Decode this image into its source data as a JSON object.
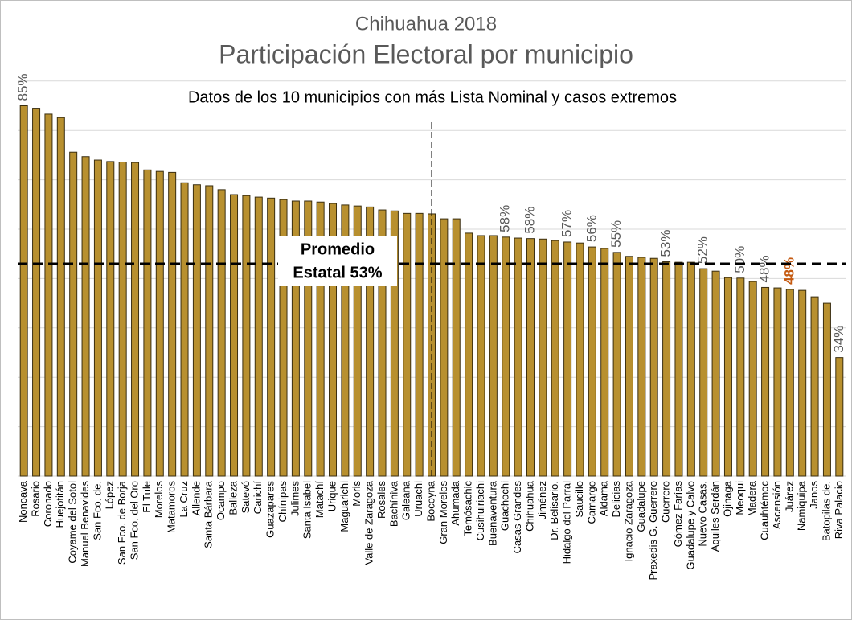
{
  "chart_data": {
    "type": "bar",
    "title": "Chihuahua 2018",
    "subtitle": "Participación Electoral por municipio",
    "note": "Datos de los 10 municipios con más Lista Nominal y casos extremos",
    "categories": [
      "Nonoava",
      "Rosario",
      "Coronado",
      "Huejotitán",
      "Coyame del Sotol",
      "Manuel Benavides",
      "San Fco. de.",
      "López",
      "San Fco. de Borja",
      "San Fco. del Oro",
      "El Tule",
      "Morelos",
      "Matamoros",
      "La Cruz",
      "Allende",
      "Santa Bárbara",
      "Ocampo",
      "Balleza",
      "Satevó",
      "Carichí",
      "Guazapares",
      "Chínipas",
      "Julimes",
      "Santa Isabel",
      "Matachí",
      "Urique",
      "Maguarichi",
      "Moris",
      "Valle de Zaragoza",
      "Rosales",
      "Bachíniva",
      "Galeana",
      "Uruachi",
      "Bocoyna",
      "Gran Morelos",
      "Ahumada",
      "Temósachic",
      "Cusihuiriachi",
      "Buenaventura",
      "Guachochi",
      "Casas Grandes",
      "Chihuahua",
      "Jiménez",
      "Dr. Belisario.",
      "Hidalgo del Parral",
      "Saucillo",
      "Camargo",
      "Aldama",
      "Delicias",
      "Ignacio Zaragoza",
      "Guadalupe",
      "Praxedis G. Guerrero",
      "Guerrero",
      "Gómez Farías",
      "Guadalupe y Calvo",
      "Nuevo Casas.",
      "Aquiles Serdán",
      "Ojinaga",
      "Meoqui",
      "Madera",
      "Cuauhtémoc",
      "Ascensión",
      "Juárez",
      "Namiquipa",
      "Janos",
      "Batopilas de.",
      "Riva Palacio"
    ],
    "values": [
      85.0,
      84.5,
      83.3,
      82.6,
      75.6,
      74.7,
      74.0,
      73.7,
      73.6,
      73.5,
      72.0,
      71.7,
      71.5,
      69.4,
      69.0,
      68.8,
      68.0,
      67.0,
      66.8,
      66.5,
      66.3,
      66.0,
      65.7,
      65.7,
      65.5,
      65.2,
      64.9,
      64.7,
      64.5,
      63.9,
      63.7,
      63.2,
      63.2,
      63.1,
      62.1,
      62.1,
      59.2,
      58.7,
      58.7,
      58.4,
      58.2,
      58.1,
      58.0,
      57.7,
      57.4,
      57.2,
      56.4,
      56.1,
      55.3,
      54.5,
      54.3,
      54.1,
      53.4,
      53.3,
      53.3,
      52.0,
      51.5,
      50.2,
      50.1,
      49.4,
      48.2,
      48.1,
      47.8,
      47.6,
      46.3,
      45.0,
      34.0
    ],
    "value_labels": [
      "85%",
      null,
      null,
      null,
      null,
      null,
      null,
      null,
      null,
      null,
      null,
      null,
      null,
      null,
      null,
      null,
      null,
      null,
      null,
      null,
      null,
      null,
      null,
      null,
      null,
      null,
      null,
      null,
      null,
      null,
      null,
      null,
      null,
      null,
      null,
      null,
      null,
      null,
      null,
      "58%",
      null,
      "58%",
      null,
      null,
      "57%",
      null,
      "56%",
      null,
      "55%",
      null,
      null,
      null,
      "53%",
      null,
      null,
      "52%",
      null,
      null,
      "50%",
      null,
      "48%",
      null,
      "48%",
      null,
      null,
      null,
      "34%"
    ],
    "color": "#b8902f",
    "label_color": "#595959",
    "highlight": "Juárez",
    "highlight_color": "#c55a11",
    "average": 53,
    "average_label": [
      "Promedio",
      "Estatal 53%"
    ],
    "reference_category": "Bocoyna",
    "ylim": [
      10,
      90
    ],
    "yticks": [
      10,
      20,
      30,
      40,
      50,
      60,
      70,
      80,
      90
    ],
    "grid": true
  }
}
